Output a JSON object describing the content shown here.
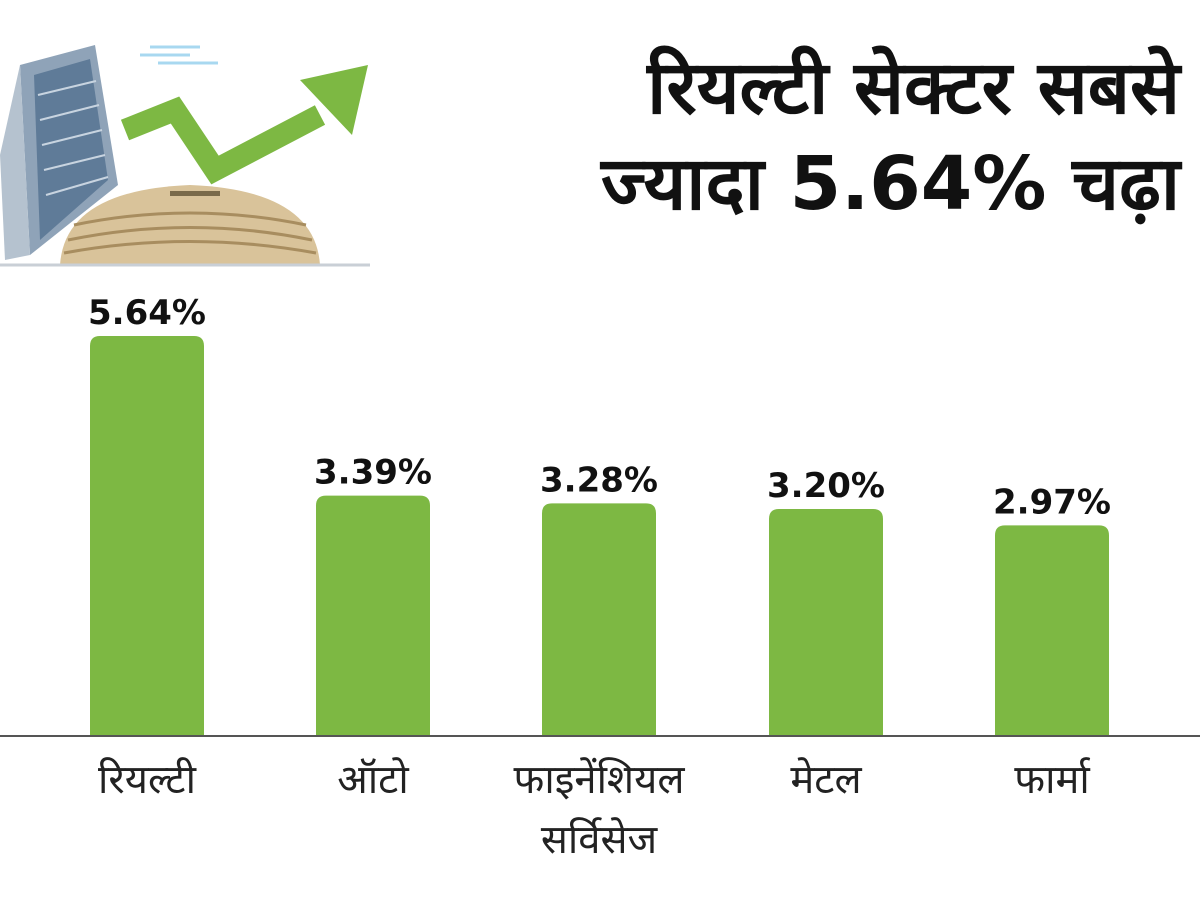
{
  "title": {
    "line1": "रियल्टी सेक्टर सबसे",
    "line2": "ज्यादा 5.64% चढ़ा"
  },
  "colors": {
    "bar": "#7DB843",
    "arrow": "#7DB843",
    "axis": "#555555",
    "text": "#111111"
  },
  "chart_data": {
    "type": "bar",
    "categories": [
      "रियल्टी",
      "ऑटो",
      "फाइनेंशियल सर्विसेज",
      "मेटल",
      "फार्मा"
    ],
    "category_lines": [
      [
        "रियल्टी"
      ],
      [
        "ऑटो"
      ],
      [
        "फाइनेंशियल",
        "सर्विसेज"
      ],
      [
        "मेटल"
      ],
      [
        "फार्मा"
      ]
    ],
    "values": [
      5.64,
      3.39,
      3.28,
      3.2,
      2.97
    ],
    "data_labels": [
      "5.64%",
      "3.39%",
      "3.28%",
      "3.20%",
      "2.97%"
    ],
    "ylim": [
      0,
      5.64
    ],
    "grid": false
  }
}
